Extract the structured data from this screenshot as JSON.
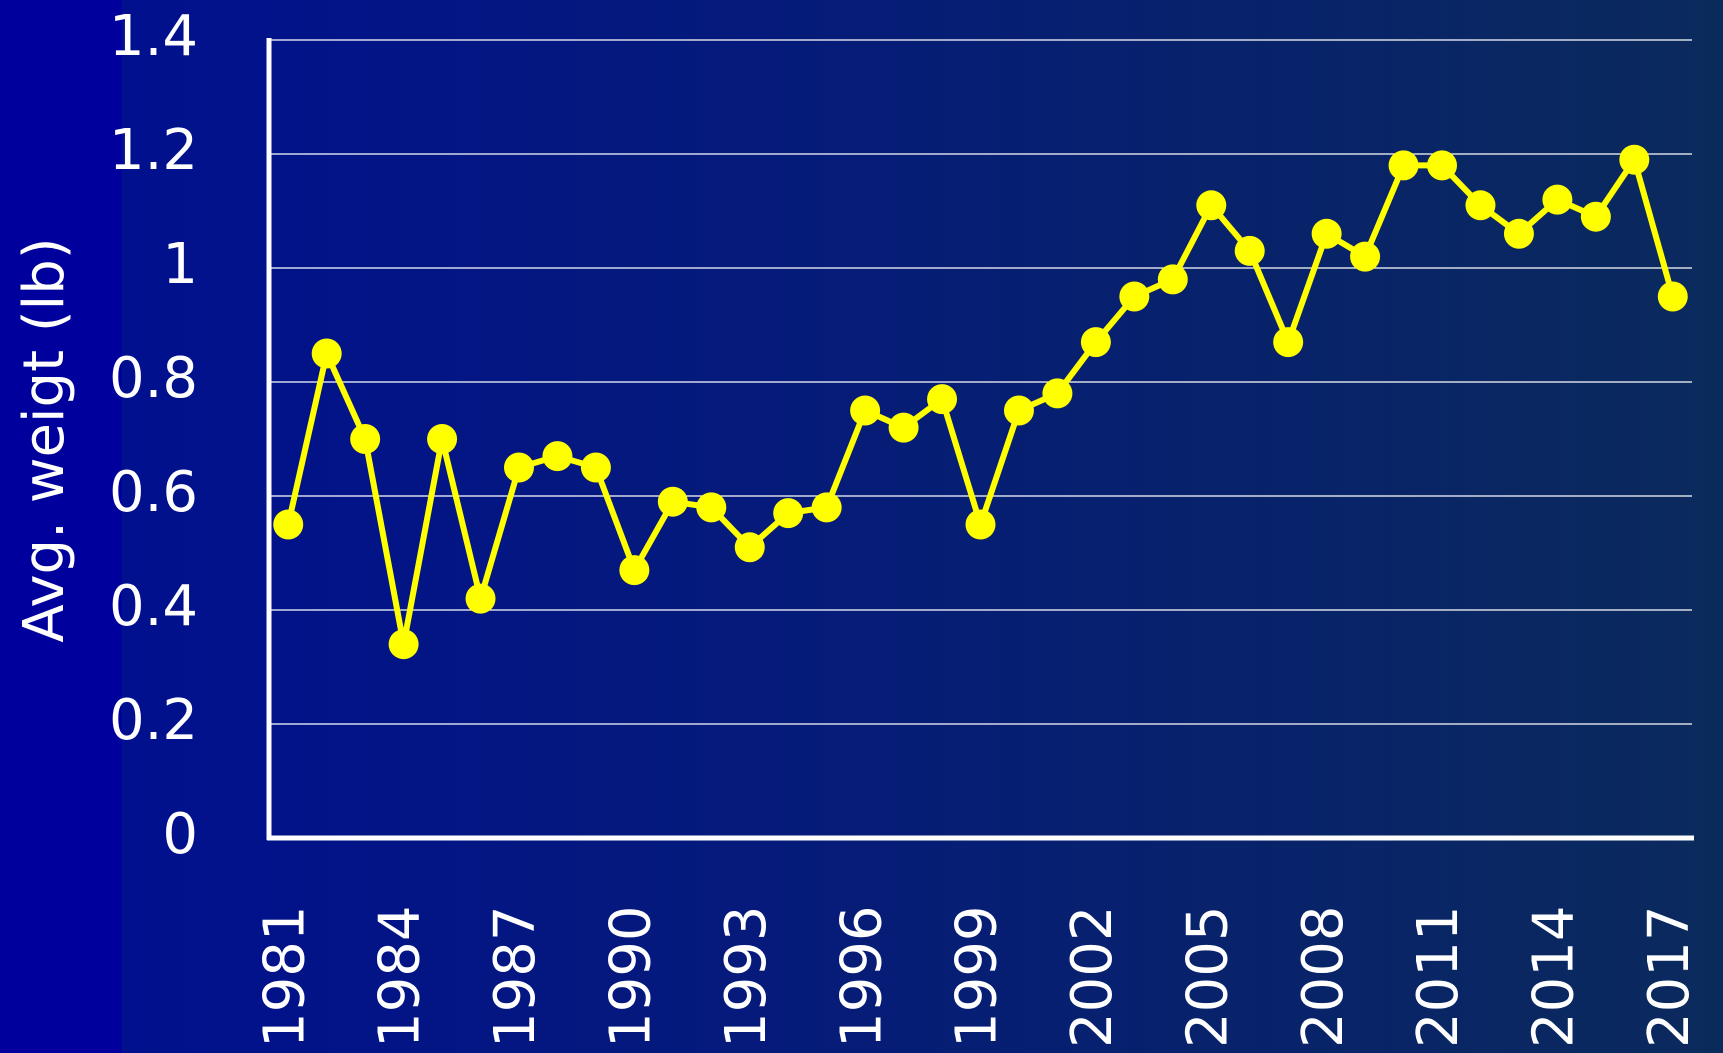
{
  "chart_data": {
    "type": "line",
    "y_label": "Avg. weigt (lb)",
    "x": [
      1981,
      1982,
      1983,
      1984,
      1985,
      1986,
      1987,
      1988,
      1989,
      1990,
      1991,
      1992,
      1993,
      1994,
      1995,
      1996,
      1997,
      1998,
      1999,
      2000,
      2001,
      2002,
      2003,
      2004,
      2005,
      2006,
      2007,
      2008,
      2009,
      2010,
      2011,
      2012,
      2013,
      2014,
      2015,
      2016,
      2017
    ],
    "series": [
      {
        "name": null,
        "color": "#ffff00",
        "values": [
          0.55,
          0.85,
          0.7,
          0.34,
          0.7,
          0.42,
          0.65,
          0.67,
          0.65,
          0.47,
          0.59,
          0.58,
          0.51,
          0.57,
          0.58,
          0.75,
          0.72,
          0.77,
          0.55,
          0.75,
          0.78,
          0.87,
          0.95,
          0.98,
          1.11,
          1.03,
          0.87,
          1.06,
          1.02,
          1.18,
          1.18,
          1.11,
          1.06,
          1.12,
          1.09,
          1.19,
          0.95
        ]
      }
    ],
    "xlim": [
      1980.5,
      2017.5
    ],
    "xticks": [
      1981,
      1984,
      1987,
      1990,
      1993,
      1996,
      1999,
      2002,
      2005,
      2008,
      2011,
      2014,
      2017
    ],
    "ylim": [
      0,
      1.4
    ],
    "yticks": [
      0,
      0.2,
      0.4,
      0.6,
      0.8,
      1,
      1.2,
      1.4
    ],
    "grid": true
  }
}
